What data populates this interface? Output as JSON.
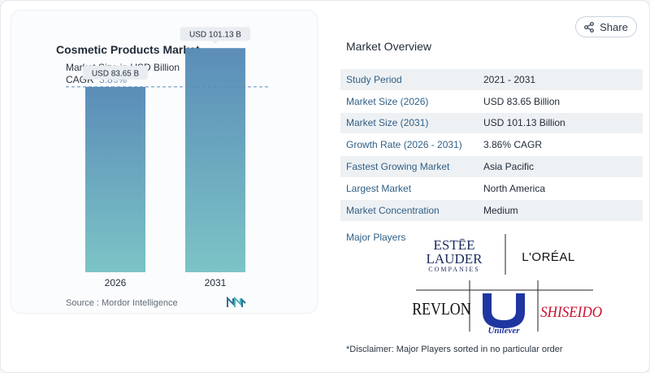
{
  "share": {
    "label": "Share",
    "icon": "share-icon"
  },
  "chart": {
    "title": "Cosmetic Products Market",
    "subtitle": "Market Size in USD Billion",
    "cagr_label": "CAGR",
    "cagr_value": "3.86%",
    "source": "Source :  Mordor Intelligence",
    "bar_color_top": "#5b8db8",
    "bar_color_bottom": "#7cc4c6"
  },
  "chart_data": {
    "type": "bar",
    "categories": [
      "2026",
      "2031"
    ],
    "values": [
      83.65,
      101.13
    ],
    "data_labels": [
      "USD 83.65 B",
      "USD 101.13 B"
    ],
    "title": "Cosmetic Products Market",
    "subtitle": "Market Size in USD Billion",
    "ylim": [
      0,
      110
    ],
    "reference_line": 83.65,
    "grid": false
  },
  "overview": {
    "title": "Market Overview",
    "rows": [
      {
        "label": "Study Period",
        "value": "2021 - 2031"
      },
      {
        "label": "Market Size (2026)",
        "value": "USD 83.65 Billion"
      },
      {
        "label": "Market Size (2031)",
        "value": "USD 101.13 Billion"
      },
      {
        "label": "Growth Rate (2026 - 2031)",
        "value": "3.86% CAGR"
      },
      {
        "label": "Fastest Growing Market",
        "value": "Asia Pacific"
      },
      {
        "label": "Largest Market",
        "value": "North America"
      },
      {
        "label": "Market Concentration",
        "value": "Medium"
      }
    ],
    "players_label": "Major Players",
    "players": [
      "ESTĒE LAUDER COMPANIES",
      "L'ORÉAL",
      "REVLON",
      "Unilever",
      "SHISEIDO"
    ]
  },
  "disclaimer": "*Disclaimer: Major Players sorted in no particular order"
}
